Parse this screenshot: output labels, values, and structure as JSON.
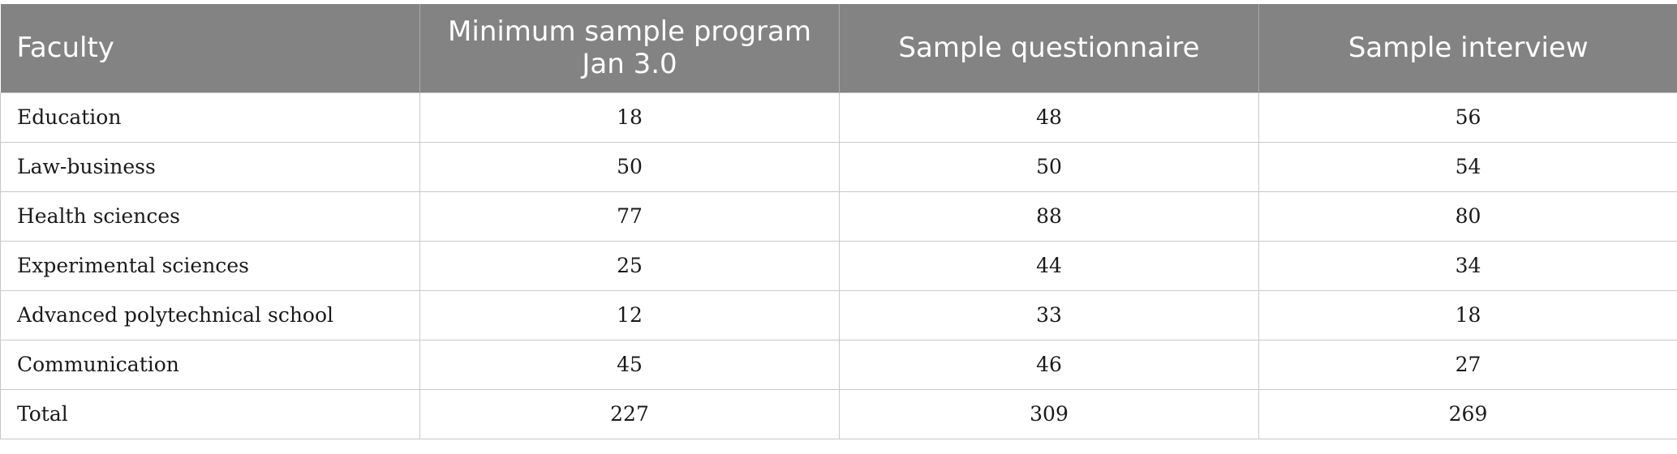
{
  "table": {
    "headers": [
      "Faculty",
      "Minimum sample program Jan 3.0",
      "Sample questionnaire",
      "Sample interview"
    ],
    "rows": [
      [
        "Education",
        "18",
        "48",
        "56"
      ],
      [
        "Law-business",
        "50",
        "50",
        "54"
      ],
      [
        "Health sciences",
        "77",
        "88",
        "80"
      ],
      [
        "Experimental sciences",
        "25",
        "44",
        "34"
      ],
      [
        "Advanced polytechnical school",
        "12",
        "33",
        "18"
      ],
      [
        "Communication",
        "45",
        "46",
        "27"
      ],
      [
        "Total",
        "227",
        "309",
        "269"
      ]
    ]
  },
  "colors": {
    "header_bg": "#828382",
    "header_text": "#ffffff",
    "grid": "#c9c9c9"
  }
}
